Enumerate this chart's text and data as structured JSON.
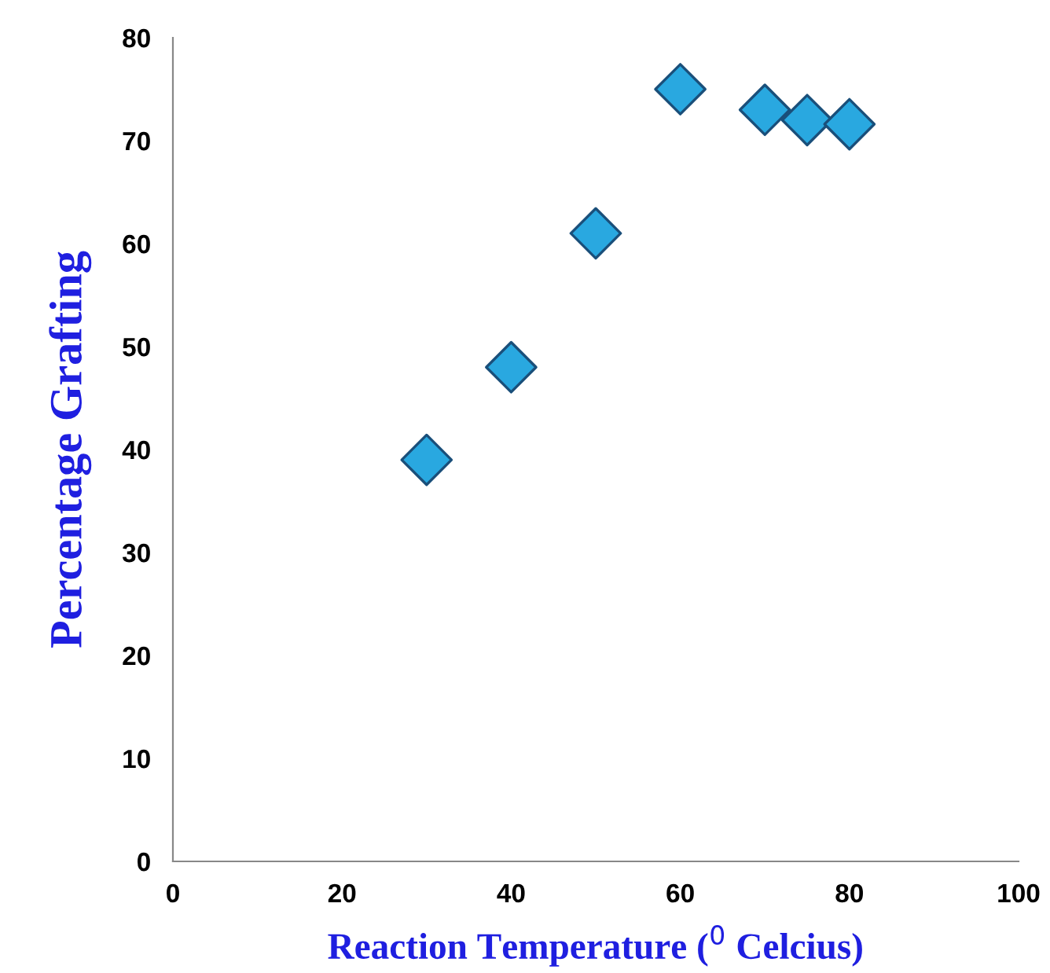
{
  "chart_data": {
    "type": "scatter",
    "xlabel": "Reaction Temperature ($^{0}$ Celcius)",
    "ylabel": "Percentage Grafting",
    "x": [
      30,
      40,
      50,
      60,
      70,
      75,
      80
    ],
    "series": [
      {
        "color": "#29a8e0",
        "values": [
          39,
          48,
          61,
          75,
          73,
          72,
          71.6
        ]
      }
    ],
    "xlim": [
      0,
      100
    ],
    "xticks": [
      0,
      20,
      40,
      60,
      80,
      100
    ],
    "ylim": [
      0,
      80
    ],
    "yticks": [
      0,
      10,
      20,
      30,
      40,
      50,
      60,
      70,
      80
    ],
    "marker": "diamond",
    "grid": false,
    "legend": false
  }
}
